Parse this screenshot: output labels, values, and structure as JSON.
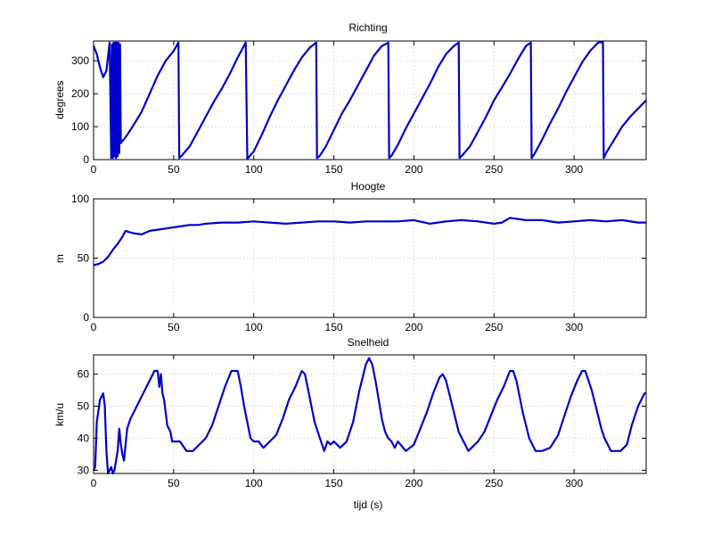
{
  "figure": {
    "background": "#ffffff",
    "line_color": "#0000c8",
    "grid_color": "#c8c8c8"
  },
  "chart_data": [
    {
      "type": "line",
      "title": "Richting",
      "xlabel": "",
      "ylabel": "degrees",
      "xlim": [
        0,
        345
      ],
      "ylim": [
        0,
        360
      ],
      "xticks": [
        0,
        50,
        100,
        150,
        200,
        250,
        300
      ],
      "yticks": [
        0,
        100,
        200,
        300
      ],
      "grid": true,
      "series": [
        {
          "x": [
            0,
            2,
            4,
            6,
            8,
            10,
            11,
            11.5,
            12,
            12.5,
            13,
            13.5,
            14,
            14.5,
            15,
            15.5,
            16,
            16.5,
            17,
            19,
            21,
            23,
            25,
            30,
            35,
            40,
            45,
            50,
            53,
            53.5,
            55,
            60,
            65,
            70,
            75,
            80,
            85,
            90,
            95,
            96,
            97,
            100,
            105,
            110,
            115,
            120,
            125,
            130,
            135,
            139,
            139.5,
            141,
            145,
            150,
            155,
            160,
            165,
            170,
            175,
            180,
            184,
            184.5,
            186,
            190,
            195,
            200,
            205,
            210,
            215,
            220,
            225,
            228,
            228.5,
            230,
            235,
            240,
            245,
            250,
            255,
            260,
            265,
            270,
            273,
            273.5,
            275,
            280,
            285,
            290,
            295,
            300,
            305,
            310,
            315,
            318,
            318.5,
            320,
            325,
            330,
            335,
            340,
            345
          ],
          "y": [
            345,
            320,
            280,
            250,
            270,
            355,
            5,
            350,
            5,
            355,
            10,
            355,
            5,
            355,
            10,
            355,
            20,
            350,
            50,
            62,
            75,
            90,
            105,
            145,
            200,
            255,
            300,
            330,
            355,
            5,
            12,
            40,
            85,
            130,
            175,
            215,
            260,
            310,
            355,
            2,
            8,
            25,
            75,
            130,
            180,
            225,
            270,
            310,
            340,
            355,
            5,
            10,
            40,
            90,
            140,
            180,
            225,
            270,
            315,
            345,
            355,
            5,
            12,
            45,
            95,
            140,
            185,
            230,
            280,
            320,
            345,
            355,
            5,
            12,
            40,
            85,
            130,
            180,
            220,
            260,
            305,
            345,
            355,
            5,
            15,
            60,
            110,
            155,
            205,
            250,
            295,
            330,
            355,
            358,
            5,
            20,
            60,
            100,
            130,
            155,
            180
          ]
        }
      ]
    },
    {
      "type": "line",
      "title": "Hoogte",
      "xlabel": "",
      "ylabel": "m",
      "xlim": [
        0,
        345
      ],
      "ylim": [
        0,
        100
      ],
      "xticks": [
        0,
        50,
        100,
        150,
        200,
        250,
        300
      ],
      "yticks": [
        0,
        50,
        100
      ],
      "grid": true,
      "series": [
        {
          "x": [
            0,
            3,
            6,
            9,
            12,
            15,
            18,
            20,
            22,
            25,
            30,
            35,
            40,
            45,
            50,
            55,
            60,
            65,
            70,
            80,
            90,
            100,
            110,
            120,
            130,
            140,
            150,
            160,
            170,
            180,
            190,
            200,
            210,
            220,
            230,
            240,
            250,
            255,
            260,
            270,
            280,
            290,
            300,
            310,
            320,
            330,
            340,
            345
          ],
          "y": [
            44,
            45,
            47,
            51,
            57,
            62,
            68,
            73,
            72,
            71,
            70,
            73,
            74,
            75,
            76,
            77,
            78,
            78,
            79,
            80,
            80,
            81,
            80,
            79,
            80,
            81,
            81,
            80,
            81,
            81,
            81,
            82,
            79,
            81,
            82,
            81,
            79,
            80,
            84,
            82,
            82,
            80,
            81,
            82,
            81,
            82,
            80,
            80
          ]
        }
      ]
    },
    {
      "type": "line",
      "title": "Snelheid",
      "xlabel": "tijd (s)",
      "ylabel": "km/u",
      "xlim": [
        0,
        345
      ],
      "ylim": [
        29,
        66
      ],
      "xticks": [
        0,
        50,
        100,
        150,
        200,
        250,
        300
      ],
      "yticks": [
        30,
        40,
        50,
        60
      ],
      "grid": true,
      "series": [
        {
          "x": [
            0,
            1,
            2,
            4,
            6,
            7,
            8,
            9,
            10,
            11,
            12,
            13,
            14,
            15,
            16,
            17,
            18,
            19,
            20,
            21,
            23,
            25,
            27,
            29,
            31,
            33,
            35,
            37,
            38,
            39,
            40,
            41,
            42,
            43,
            44,
            45,
            46,
            47,
            48,
            49,
            50,
            52,
            54,
            58,
            62,
            66,
            70,
            74,
            78,
            82,
            86,
            88,
            90,
            92,
            94,
            96,
            98,
            100,
            103,
            106,
            110,
            114,
            118,
            122,
            126,
            130,
            132,
            134,
            136,
            138,
            140,
            142,
            144,
            146,
            148,
            150,
            154,
            158,
            162,
            166,
            170,
            172,
            174,
            176,
            178,
            180,
            182,
            184,
            186,
            188,
            190,
            195,
            200,
            204,
            208,
            212,
            216,
            218,
            220,
            222,
            224,
            226,
            228,
            230,
            232,
            234,
            236,
            240,
            244,
            248,
            252,
            256,
            260,
            262,
            264,
            266,
            268,
            270,
            272,
            274,
            276,
            278,
            280,
            285,
            290,
            294,
            298,
            302,
            305,
            307,
            309,
            311,
            313,
            315,
            317,
            319,
            321,
            323,
            325,
            329,
            333,
            336,
            338,
            340,
            342,
            344,
            345
          ],
          "y": [
            30,
            31,
            45,
            52,
            54,
            50,
            36,
            29,
            30,
            31,
            29,
            30,
            33,
            36,
            43,
            38,
            35,
            33,
            38,
            43,
            46,
            48,
            50,
            52,
            54,
            56,
            58,
            60,
            61,
            61,
            61,
            56,
            60,
            54,
            52,
            48,
            44,
            43,
            42,
            39,
            39,
            39,
            39,
            36,
            36,
            38,
            40,
            44,
            50,
            56,
            61,
            61,
            61,
            56,
            50,
            45,
            40,
            39,
            39,
            37,
            39,
            41,
            46,
            52,
            56,
            61,
            60,
            55,
            50,
            45,
            42,
            39,
            36,
            39,
            38,
            39,
            37,
            39,
            45,
            55,
            63,
            65,
            63,
            58,
            52,
            46,
            42,
            40,
            39,
            37,
            39,
            36,
            38,
            43,
            48,
            54,
            59,
            60,
            58,
            54,
            50,
            46,
            42,
            40,
            38,
            36,
            37,
            39,
            42,
            47,
            52,
            56,
            61,
            61,
            58,
            53,
            48,
            44,
            40,
            38,
            36,
            36,
            36,
            37,
            41,
            47,
            53,
            58,
            61,
            61,
            58,
            55,
            51,
            47,
            43,
            40,
            38,
            36,
            36,
            36,
            38,
            44,
            47,
            50,
            52,
            54,
            54
          ]
        }
      ]
    }
  ]
}
